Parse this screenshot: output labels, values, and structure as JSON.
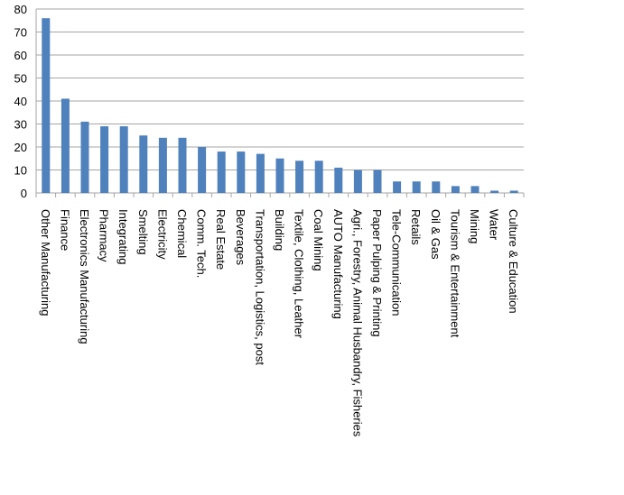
{
  "chart_data": {
    "type": "bar",
    "categories": [
      "Other Manufacturing",
      "Finance",
      "Electronics Manufacturing",
      "Pharmacy",
      "Integrating",
      "Smelting",
      "Electricity",
      "Chemical",
      "Comm. Tech.",
      "Real Estate",
      "Beverages",
      "Transportation, Logistics, post",
      "Building",
      "Textile, Clothing, Leather",
      "Coal Mining",
      "AUTO Manufacturing",
      "Agri., Forestry, Animal Husbandry, Fisheries",
      "Paper Pulping & Printing",
      "Tele-Communication",
      "Retails",
      "Oil & Gas",
      "Tourism & Entertainment",
      "Mining",
      "Water",
      "Culture & Education"
    ],
    "values": [
      76,
      41,
      31,
      29,
      29,
      25,
      24,
      24,
      20,
      18,
      18,
      17,
      15,
      14,
      14,
      11,
      10,
      10,
      5,
      5,
      5,
      3,
      3,
      1,
      1
    ],
    "color": "#4f81bd",
    "ylim": [
      0,
      80
    ],
    "yticks": [
      0,
      10,
      20,
      30,
      40,
      50,
      60,
      70,
      80
    ],
    "grid": true
  }
}
